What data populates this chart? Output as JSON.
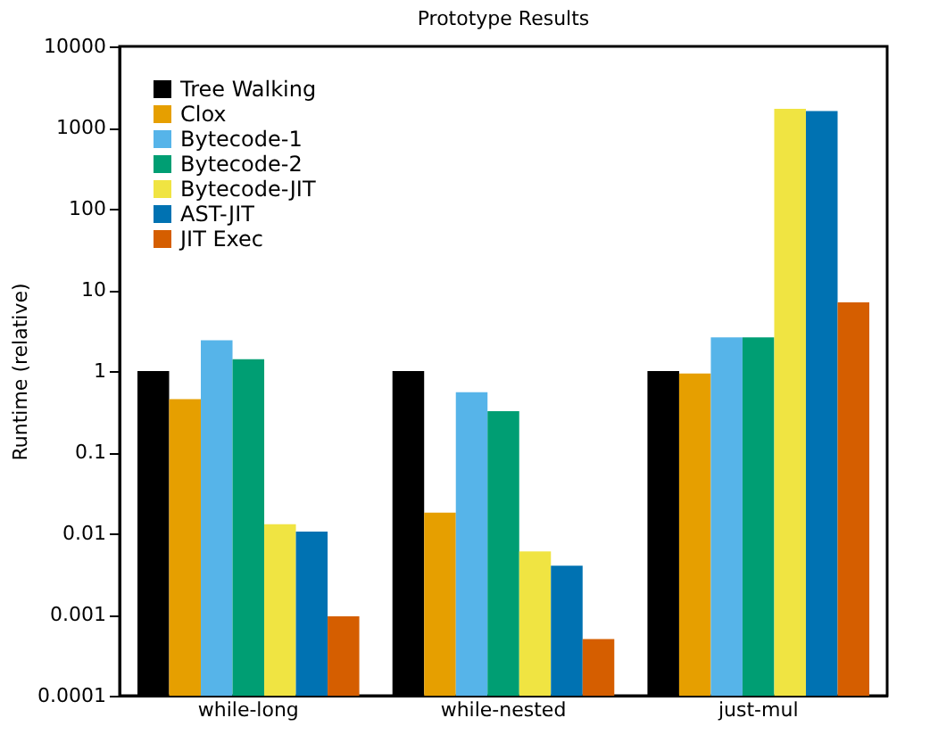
{
  "chart_data": {
    "type": "bar",
    "title": "Prototype Results",
    "ylabel": "Runtime (relative)",
    "categories": [
      "while-long",
      "while-nested",
      "just-mul"
    ],
    "series": [
      {
        "name": "Tree Walking",
        "color": "#000000",
        "values": [
          1,
          1,
          1
        ]
      },
      {
        "name": "Clox",
        "color": "#e69f00",
        "values": [
          0.45,
          0.018,
          0.93
        ]
      },
      {
        "name": "Bytecode-1",
        "color": "#56b4e9",
        "values": [
          2.4,
          0.55,
          2.6
        ]
      },
      {
        "name": "Bytecode-2",
        "color": "#009e73",
        "values": [
          1.4,
          0.32,
          2.6
        ]
      },
      {
        "name": "Bytecode-JIT",
        "color": "#f0e442",
        "values": [
          0.013,
          0.006,
          1700
        ]
      },
      {
        "name": "AST-JIT",
        "color": "#0072b2",
        "values": [
          0.0105,
          0.004,
          1600
        ]
      },
      {
        "name": "JIT Exec",
        "color": "#d55e00",
        "values": [
          0.00095,
          0.0005,
          7
        ]
      }
    ],
    "log": true,
    "ylim": [
      0.0001,
      10000
    ],
    "yticks": [
      0.0001,
      0.001,
      0.01,
      0.1,
      1,
      10,
      100,
      1000,
      10000
    ],
    "legend": "top left",
    "grid": false
  }
}
